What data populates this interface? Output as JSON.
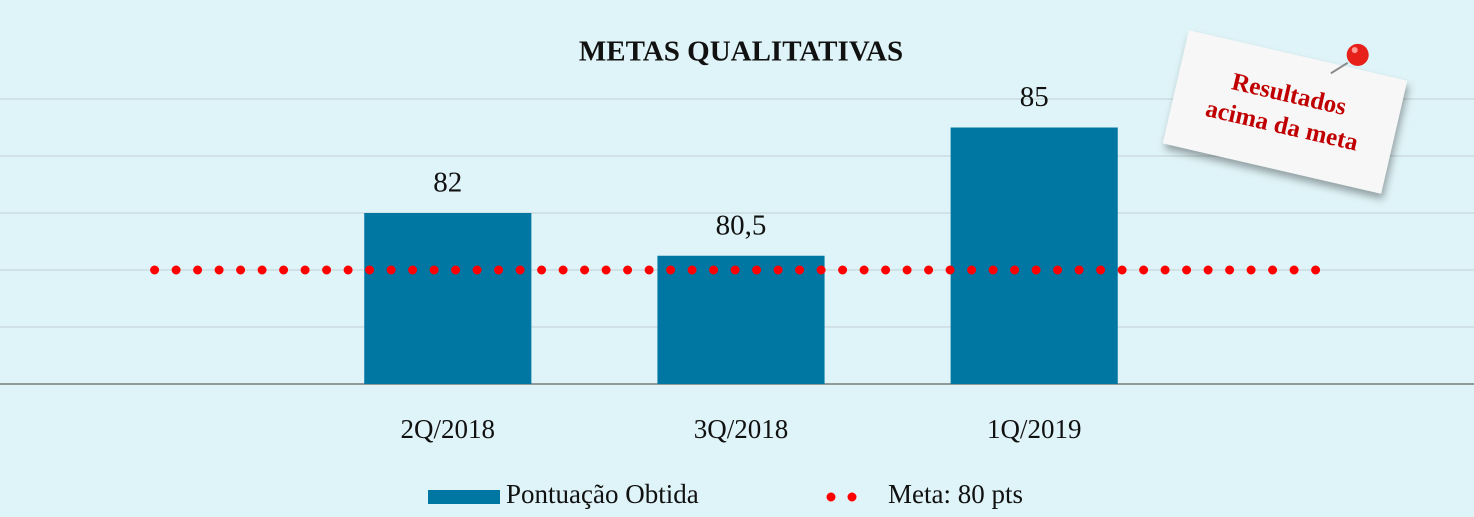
{
  "chart_data": {
    "type": "bar",
    "title": "METAS QUALITATIVAS",
    "categories": [
      null,
      "2Q/2018",
      "3Q/2018",
      "1Q/2019",
      null
    ],
    "series": [
      {
        "name": "Pontuação Obtida",
        "type": "bar",
        "color": "#0077a3",
        "values": [
          null,
          82,
          80.5,
          85,
          null
        ],
        "value_labels": [
          null,
          "82",
          "80,5",
          "85",
          null
        ]
      },
      {
        "name": "Meta: 80 pts",
        "type": "line",
        "color": "#ff0000",
        "values": [
          80,
          80,
          80,
          80,
          80
        ]
      }
    ],
    "ylim": [
      76,
      86
    ],
    "yticks": [
      76,
      78,
      80,
      82,
      84,
      86
    ],
    "grid": true,
    "legend": "bottom",
    "annotation": [
      "Resultados",
      "acima da meta"
    ]
  }
}
